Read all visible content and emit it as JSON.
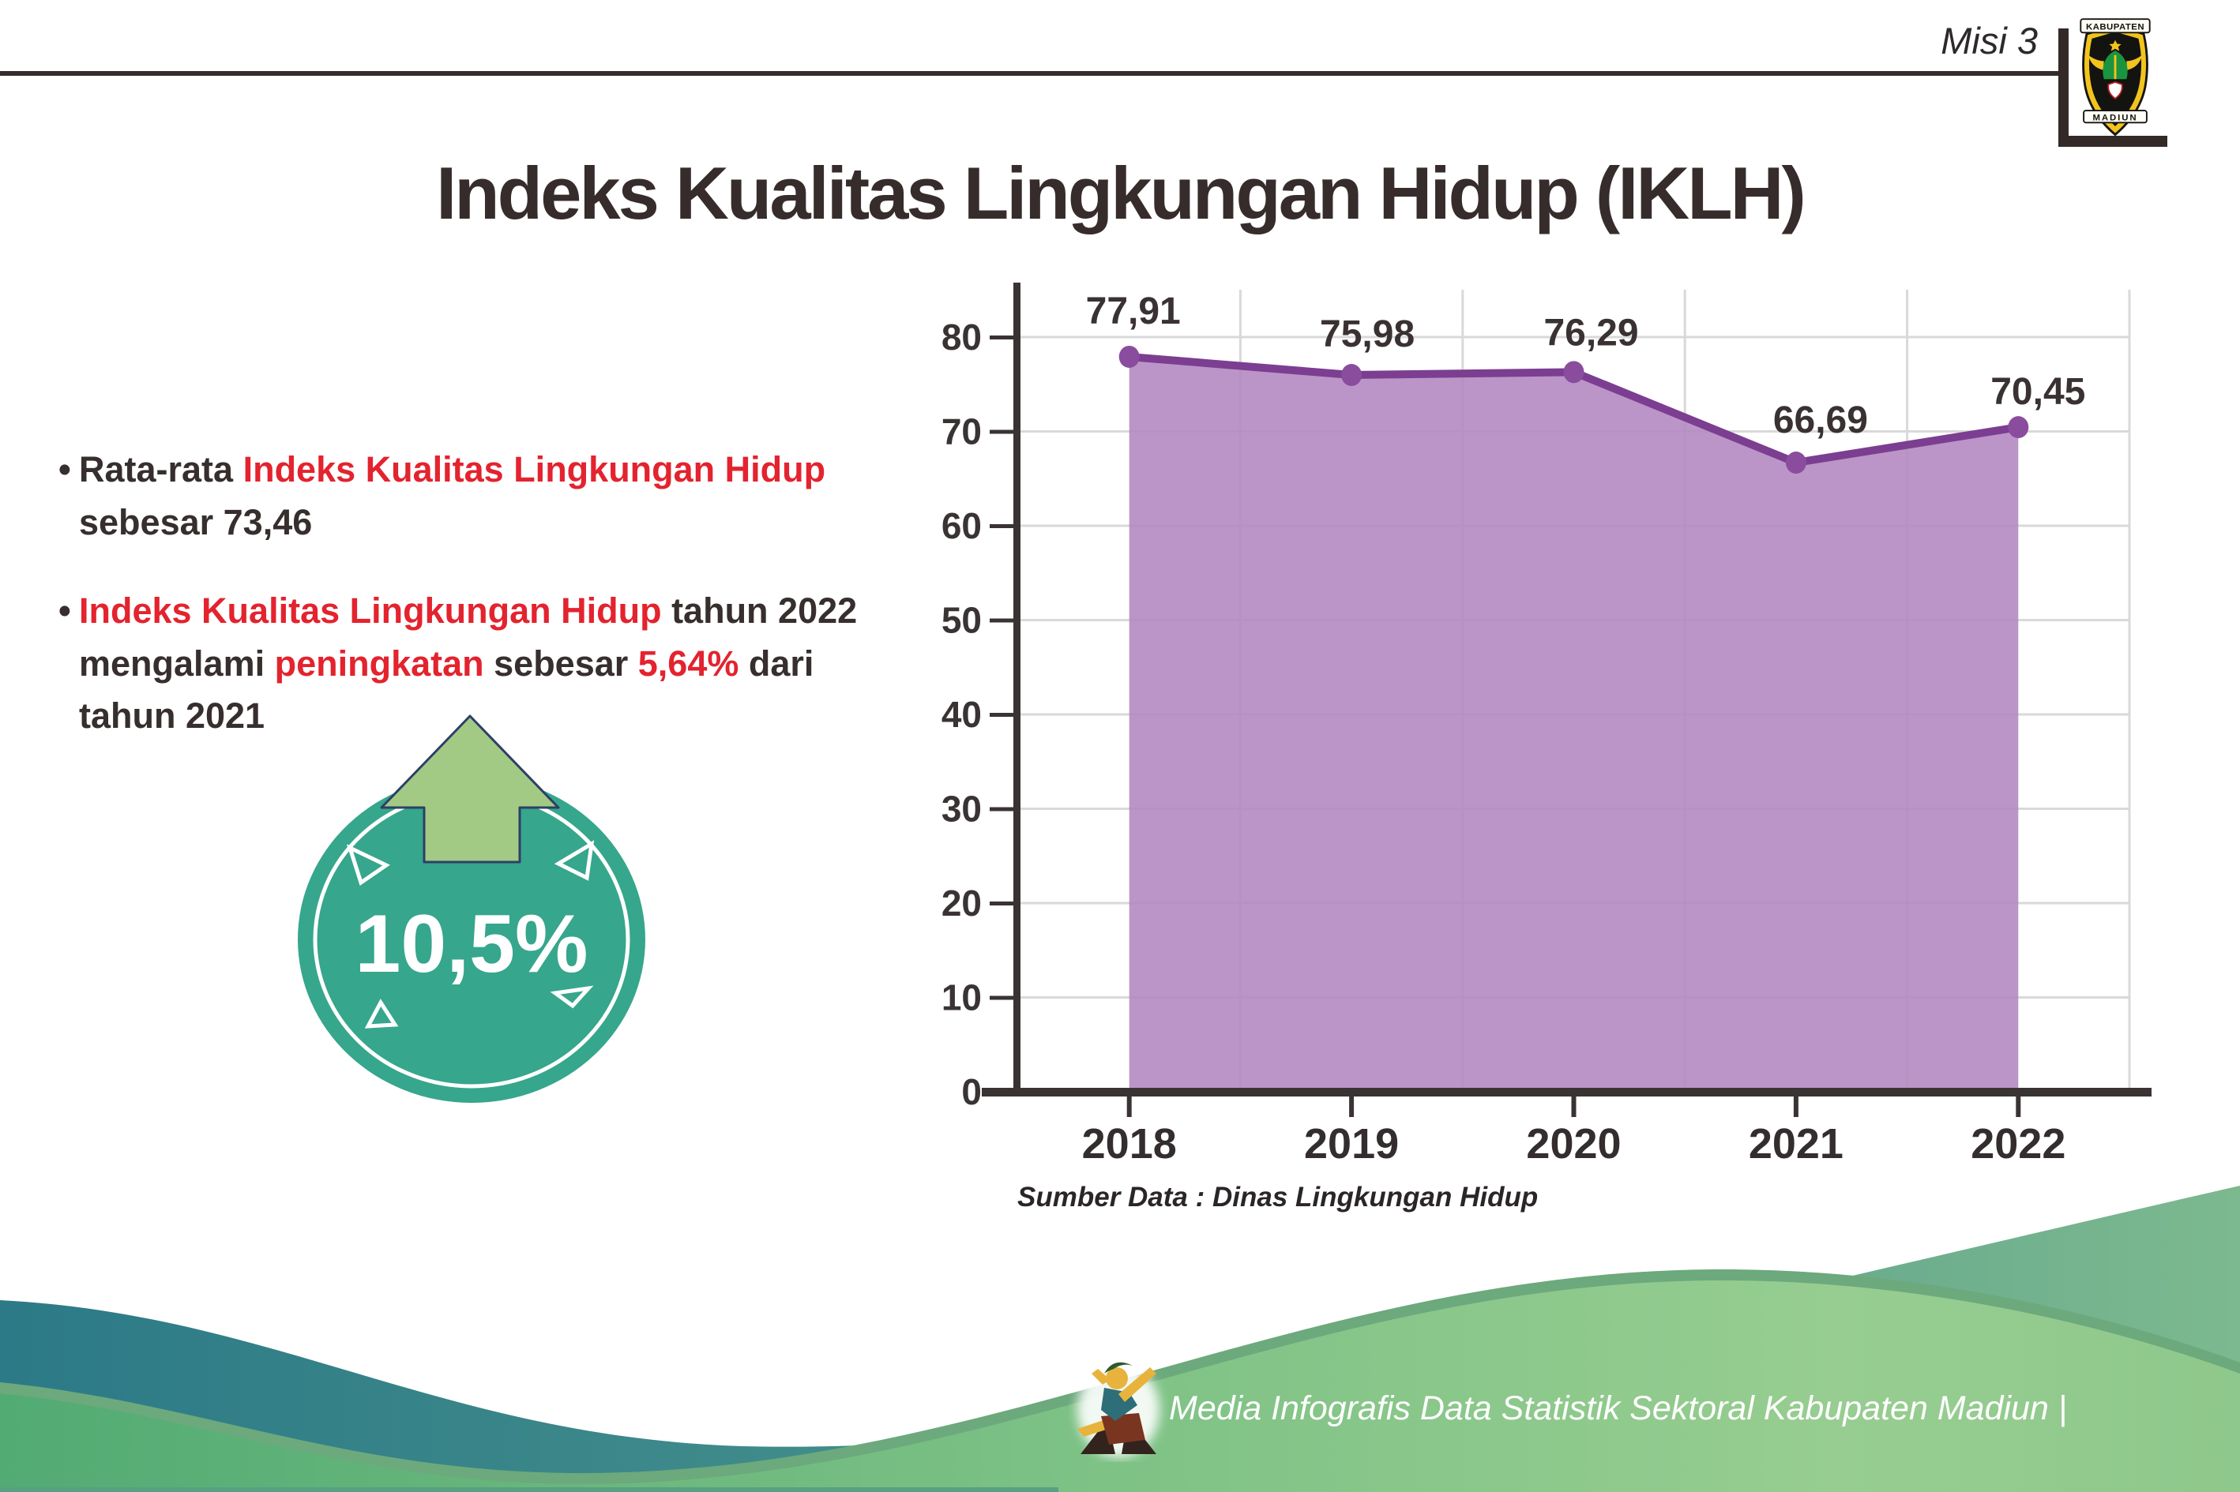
{
  "header": {
    "misi": "Misi 3",
    "logo": {
      "top": "KABUPATEN",
      "bottom": "MADIUN"
    }
  },
  "title": "Indeks Kualitas Lingkungan Hidup (IKLH)",
  "bullet_glyph": "•",
  "bullets": [
    {
      "segments": [
        {
          "text": "Rata-rata ",
          "em": false
        },
        {
          "text": "Indeks Kualitas Lingkungan Hidup",
          "em": true
        },
        {
          "text": "\nsebesar 73,46",
          "em": false
        }
      ]
    },
    {
      "segments": [
        {
          "text": "Indeks Kualitas Lingkungan Hidup",
          "em": true
        },
        {
          "text": " tahun 2022\nmengalami ",
          "em": false
        },
        {
          "text": "peningkatan",
          "em": true
        },
        {
          "text": " sebesar ",
          "em": false
        },
        {
          "text": "5,64%",
          "em": true
        },
        {
          "text": " dari\ntahun 2021",
          "em": false
        }
      ]
    }
  ],
  "badge": {
    "value": "10,5%"
  },
  "chart_data": {
    "type": "area",
    "title": "Indeks Kualitas Lingkungan Hidup (IKLH)",
    "categories": [
      "2018",
      "2019",
      "2020",
      "2021",
      "2022"
    ],
    "values": [
      77.91,
      75.98,
      76.29,
      66.69,
      70.45
    ],
    "labels": [
      "77,91",
      "75,98",
      "76,29",
      "66,69",
      "70,45"
    ],
    "ylim": [
      0,
      80
    ],
    "yticks": [
      0,
      10,
      20,
      30,
      40,
      50,
      60,
      70,
      80
    ],
    "grid": true,
    "legend": "none",
    "source": "Sumber Data : Dinas Lingkungan Hidup",
    "colors": {
      "fill": "#b286c0",
      "line": "#7c3e91",
      "marker": "#8a4d9e",
      "grid": "#d9d9d9",
      "axis": "#3a3333"
    }
  },
  "footer": {
    "credit": "Media Infografis Data Statistik Sektoral Kabupaten Madiun |"
  },
  "colors": {
    "red": "#e3232e",
    "dark": "#372e2e",
    "badge_teal": "#36a68c",
    "arrow_green": "#a2ca85",
    "arrow_outline": "#2e3f66",
    "wave_teal_dark": "#2c7a87",
    "wave_green": "#7fc286"
  }
}
